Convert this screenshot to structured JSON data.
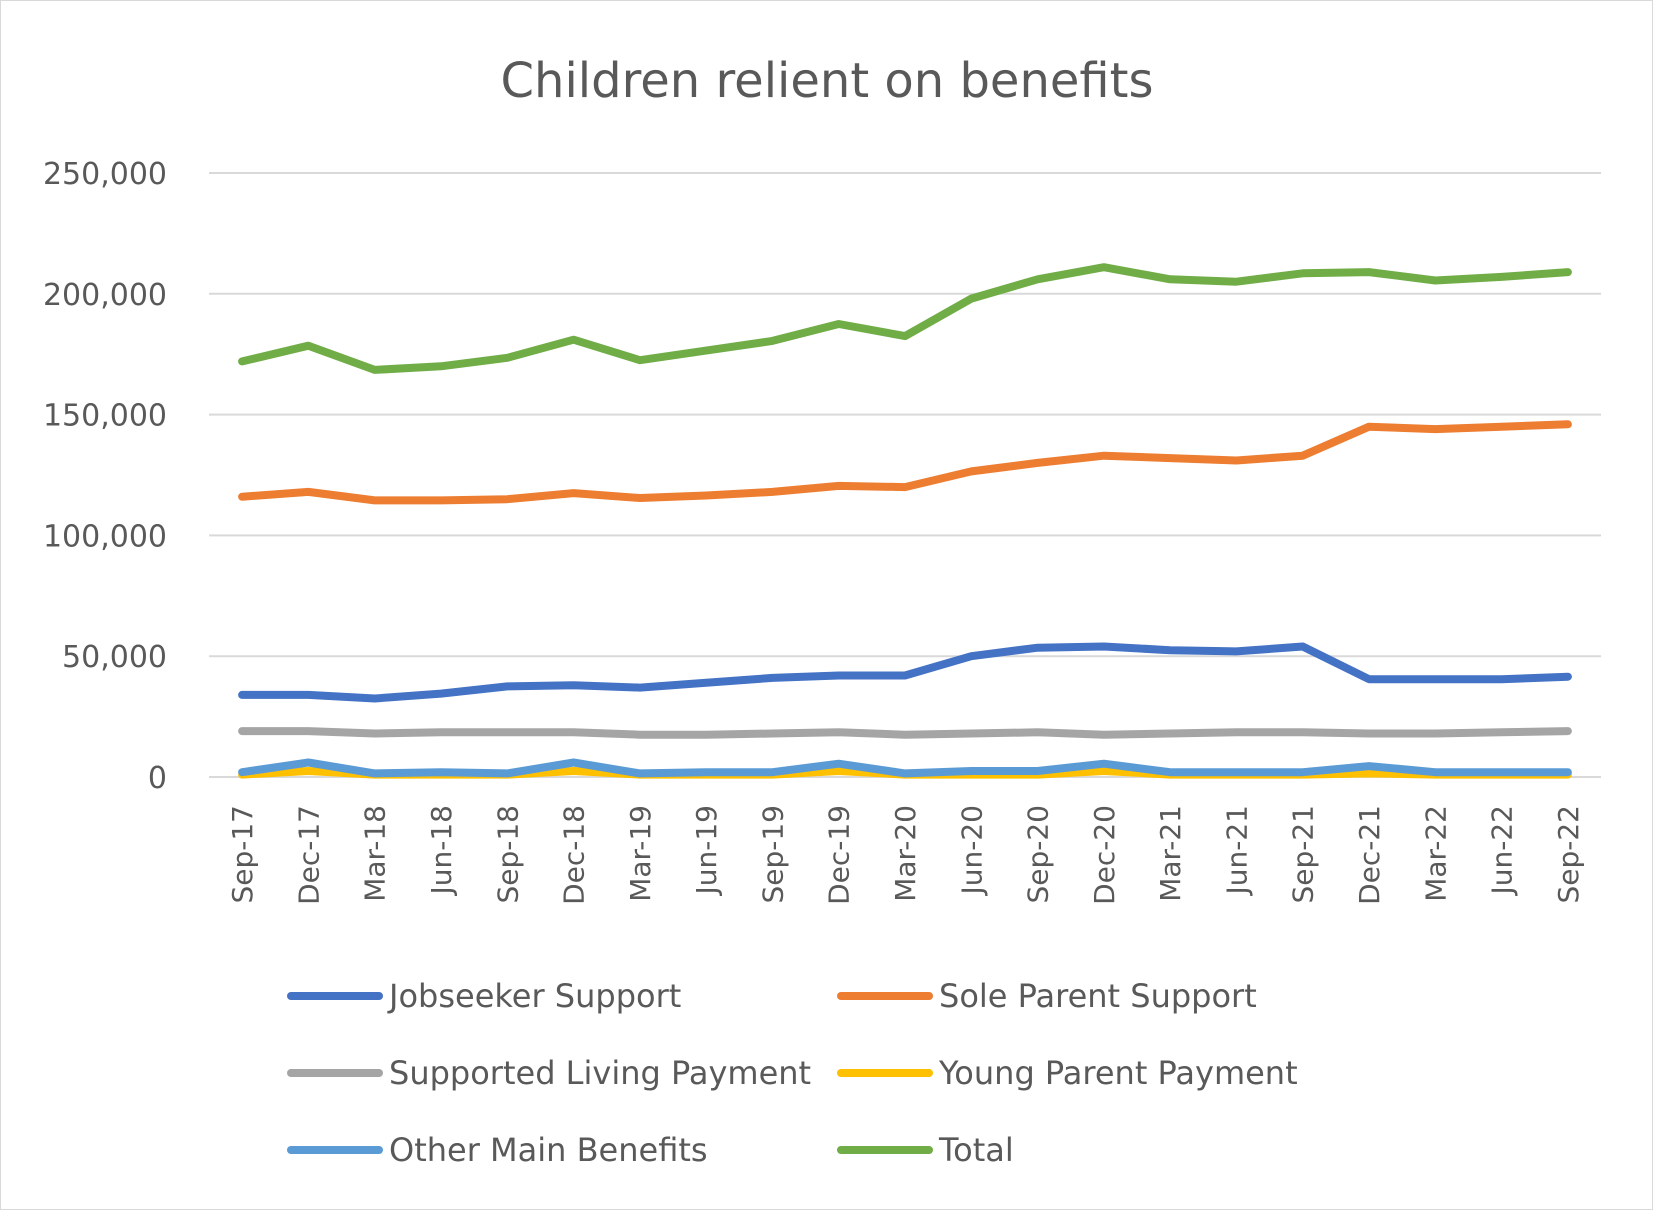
{
  "chart_data": {
    "type": "line",
    "title": "Children relient on benefits",
    "xlabel": "",
    "ylabel": "",
    "ylim": [
      0,
      250000
    ],
    "yticks": [
      0,
      50000,
      100000,
      150000,
      200000,
      250000
    ],
    "ytick_labels": [
      "0",
      "50,000",
      "100,000",
      "150,000",
      "200,000",
      "250,000"
    ],
    "grid": true,
    "legend_position": "bottom",
    "categories": [
      "Sep-17",
      "Dec-17",
      "Mar-18",
      "Jun-18",
      "Sep-18",
      "Dec-18",
      "Mar-19",
      "Jun-19",
      "Sep-19",
      "Dec-19",
      "Mar-20",
      "Jun-20",
      "Sep-20",
      "Dec-20",
      "Mar-21",
      "Jun-21",
      "Sep-21",
      "Dec-21",
      "Mar-22",
      "Jun-22",
      "Sep-22"
    ],
    "series": [
      {
        "name": "Jobseeker Support",
        "color": "#4472c4",
        "values": [
          34000,
          34000,
          32500,
          34500,
          37500,
          38000,
          37000,
          39000,
          41000,
          42000,
          42000,
          50000,
          53500,
          54000,
          52500,
          52000,
          54000,
          40500,
          40500,
          40500,
          41500
        ]
      },
      {
        "name": "Sole Parent Support",
        "color": "#ed7d31",
        "values": [
          116000,
          118000,
          114500,
          114500,
          115000,
          117500,
          115500,
          116500,
          118000,
          120500,
          120000,
          126500,
          130000,
          133000,
          132000,
          131000,
          133000,
          145000,
          144000,
          145000,
          146000
        ]
      },
      {
        "name": "Supported Living Payment",
        "color": "#a5a5a5",
        "values": [
          19000,
          19000,
          18000,
          18500,
          18500,
          18500,
          17500,
          17500,
          18000,
          18500,
          17500,
          18000,
          18500,
          17500,
          18000,
          18500,
          18500,
          18000,
          18000,
          18500,
          19000
        ]
      },
      {
        "name": "Young Parent Payment",
        "color": "#ffc000",
        "values": [
          1000,
          2500,
          1000,
          1000,
          1000,
          2500,
          1000,
          1000,
          1000,
          2500,
          1000,
          1000,
          1000,
          2500,
          1000,
          1000,
          1000,
          1500,
          1000,
          1000,
          1000
        ]
      },
      {
        "name": "Other Main Benefits",
        "color": "#5b9bd5",
        "values": [
          2000,
          6000,
          1500,
          2000,
          1500,
          6000,
          1500,
          2000,
          2000,
          5500,
          1500,
          2500,
          2500,
          5500,
          2000,
          2000,
          2000,
          4500,
          2000,
          2000,
          2000
        ]
      },
      {
        "name": "Total",
        "color": "#70ad47",
        "values": [
          172000,
          178500,
          168500,
          170000,
          173500,
          181000,
          172500,
          176500,
          180500,
          187500,
          182500,
          198000,
          206000,
          211000,
          206000,
          205000,
          208500,
          209000,
          205500,
          207000,
          209000
        ]
      }
    ]
  }
}
